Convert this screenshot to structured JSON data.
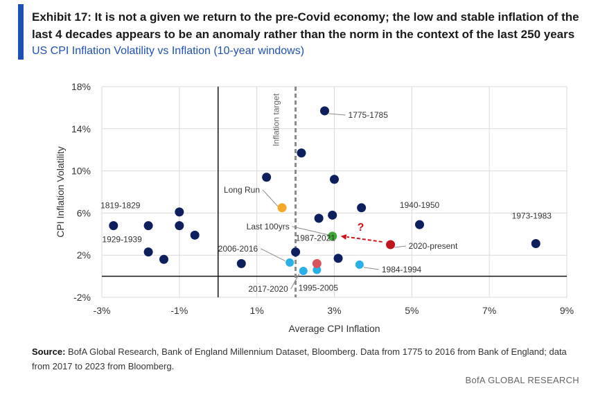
{
  "header": {
    "title": "Exhibit 17: It is not a given we return to the pre-Covid economy; the low and stable inflation of the last 4 decades appears to be an anomaly rather than the norm in the context of the last 250 years",
    "subtitle": "US CPI Inflation Volatility vs Inflation (10-year windows)"
  },
  "footer": {
    "source_label": "Source:",
    "source_text": "BofA Global Research, Bank of England Millennium Dataset, Bloomberg. Data from 1775 to 2016 from Bank of England; data from 2017 to 2023 from Bloomberg.",
    "brand": "BofA GLOBAL RESEARCH"
  },
  "colors": {
    "accent": "#1f4fb4",
    "historical": "#0d1f5c",
    "recent": "#29b0e8",
    "long_run": "#f2a829",
    "last_100yrs": "#3fa535",
    "present": "#c0141d",
    "present_1987": "#d9535b",
    "arrow": "#d0111b"
  },
  "chart_data": {
    "type": "scatter",
    "xlabel": "Average CPI Inflation",
    "ylabel": "CPI Inflation Volatility",
    "xlim": [
      -3,
      9
    ],
    "ylim": [
      -2,
      18
    ],
    "xticks": [
      -3,
      -1,
      1,
      3,
      5,
      7,
      9
    ],
    "xtick_labels": [
      "-3%",
      "-1%",
      "1%",
      "3%",
      "5%",
      "7%",
      "9%"
    ],
    "yticks": [
      -2,
      2,
      6,
      10,
      14,
      18
    ],
    "ytick_labels": [
      "-2%",
      "2%",
      "6%",
      "10%",
      "14%",
      "18%"
    ],
    "grid": true,
    "reference_line": {
      "x": 2,
      "label": "Inflation target"
    },
    "annotation": "?",
    "points": [
      {
        "x": 2.75,
        "y": 15.7,
        "label": "1775-1785",
        "group": "historical"
      },
      {
        "x": 2.15,
        "y": 11.7,
        "label": "",
        "group": "historical"
      },
      {
        "x": 1.25,
        "y": 9.4,
        "label": "",
        "group": "historical"
      },
      {
        "x": 3.0,
        "y": 9.2,
        "label": "",
        "group": "historical"
      },
      {
        "x": 3.7,
        "y": 6.5,
        "label": "",
        "group": "historical"
      },
      {
        "x": 2.95,
        "y": 5.8,
        "label": "",
        "group": "historical"
      },
      {
        "x": 2.6,
        "y": 5.5,
        "label": "",
        "group": "historical"
      },
      {
        "x": 5.2,
        "y": 4.9,
        "label": "1940-1950",
        "group": "historical"
      },
      {
        "x": 8.2,
        "y": 3.1,
        "label": "1973-1983",
        "group": "historical"
      },
      {
        "x": -2.7,
        "y": 4.8,
        "label": "1819-1829",
        "group": "historical"
      },
      {
        "x": -1.8,
        "y": 4.8,
        "label": "1929-1939",
        "group": "historical"
      },
      {
        "x": -1.0,
        "y": 6.1,
        "label": "",
        "group": "historical"
      },
      {
        "x": -1.0,
        "y": 4.8,
        "label": "",
        "group": "historical"
      },
      {
        "x": -0.6,
        "y": 3.9,
        "label": "",
        "group": "historical"
      },
      {
        "x": -1.8,
        "y": 2.3,
        "label": "",
        "group": "historical"
      },
      {
        "x": -1.4,
        "y": 1.6,
        "label": "",
        "group": "historical"
      },
      {
        "x": 0.6,
        "y": 1.2,
        "label": "",
        "group": "historical"
      },
      {
        "x": 2.0,
        "y": 2.3,
        "label": "1987-2021",
        "group": "historical"
      },
      {
        "x": 3.1,
        "y": 1.7,
        "label": "",
        "group": "historical"
      },
      {
        "x": 1.85,
        "y": 1.3,
        "label": "2006-2016",
        "group": "recent"
      },
      {
        "x": 2.2,
        "y": 0.5,
        "label": "2017-2020",
        "group": "recent"
      },
      {
        "x": 2.55,
        "y": 0.6,
        "label": "1995-2005",
        "group": "recent"
      },
      {
        "x": 3.65,
        "y": 1.1,
        "label": "1984-1994",
        "group": "recent"
      },
      {
        "x": 2.55,
        "y": 1.2,
        "label": "",
        "group": "present_1987"
      },
      {
        "x": 1.65,
        "y": 6.5,
        "label": "Long Run",
        "group": "long_run"
      },
      {
        "x": 2.95,
        "y": 3.8,
        "label": "Last 100yrs",
        "group": "last_100yrs"
      },
      {
        "x": 4.45,
        "y": 3.0,
        "label": "2020-present",
        "group": "present"
      }
    ]
  }
}
